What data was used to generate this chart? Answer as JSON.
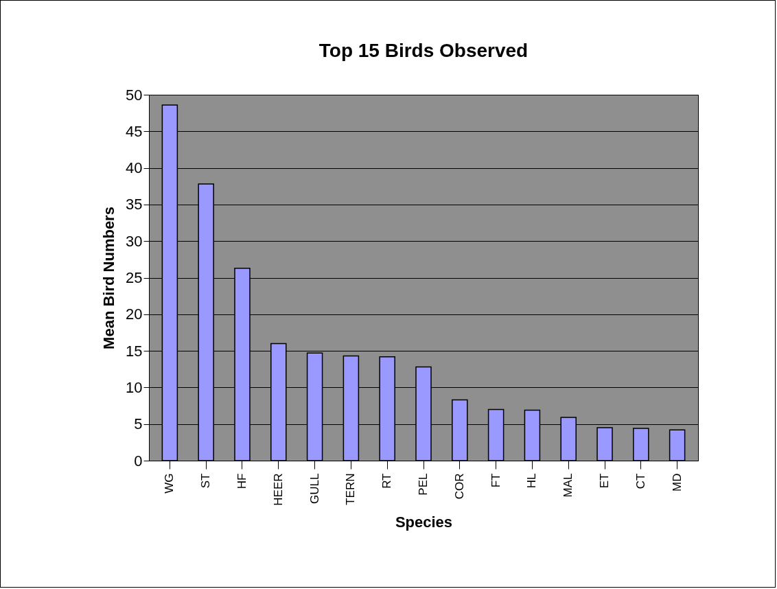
{
  "chart_data": {
    "type": "bar",
    "title": "Top 15 Birds Observed",
    "xlabel": "Species",
    "ylabel": "Mean Bird Numbers",
    "categories": [
      "WG",
      "ST",
      "HF",
      "HEER",
      "GULL",
      "TERN",
      "RT",
      "PEL",
      "COR",
      "FT",
      "HL",
      "MAL",
      "ET",
      "CT",
      "MD"
    ],
    "values": [
      48.6,
      37.8,
      26.3,
      16.0,
      14.7,
      14.3,
      14.2,
      12.8,
      8.3,
      7.0,
      6.9,
      5.9,
      4.5,
      4.4,
      4.2
    ],
    "color": "#9999ff",
    "ylim": [
      0,
      50
    ],
    "yticks": [
      0,
      5,
      10,
      15,
      20,
      25,
      30,
      35,
      40,
      45,
      50
    ],
    "grid": "y"
  }
}
